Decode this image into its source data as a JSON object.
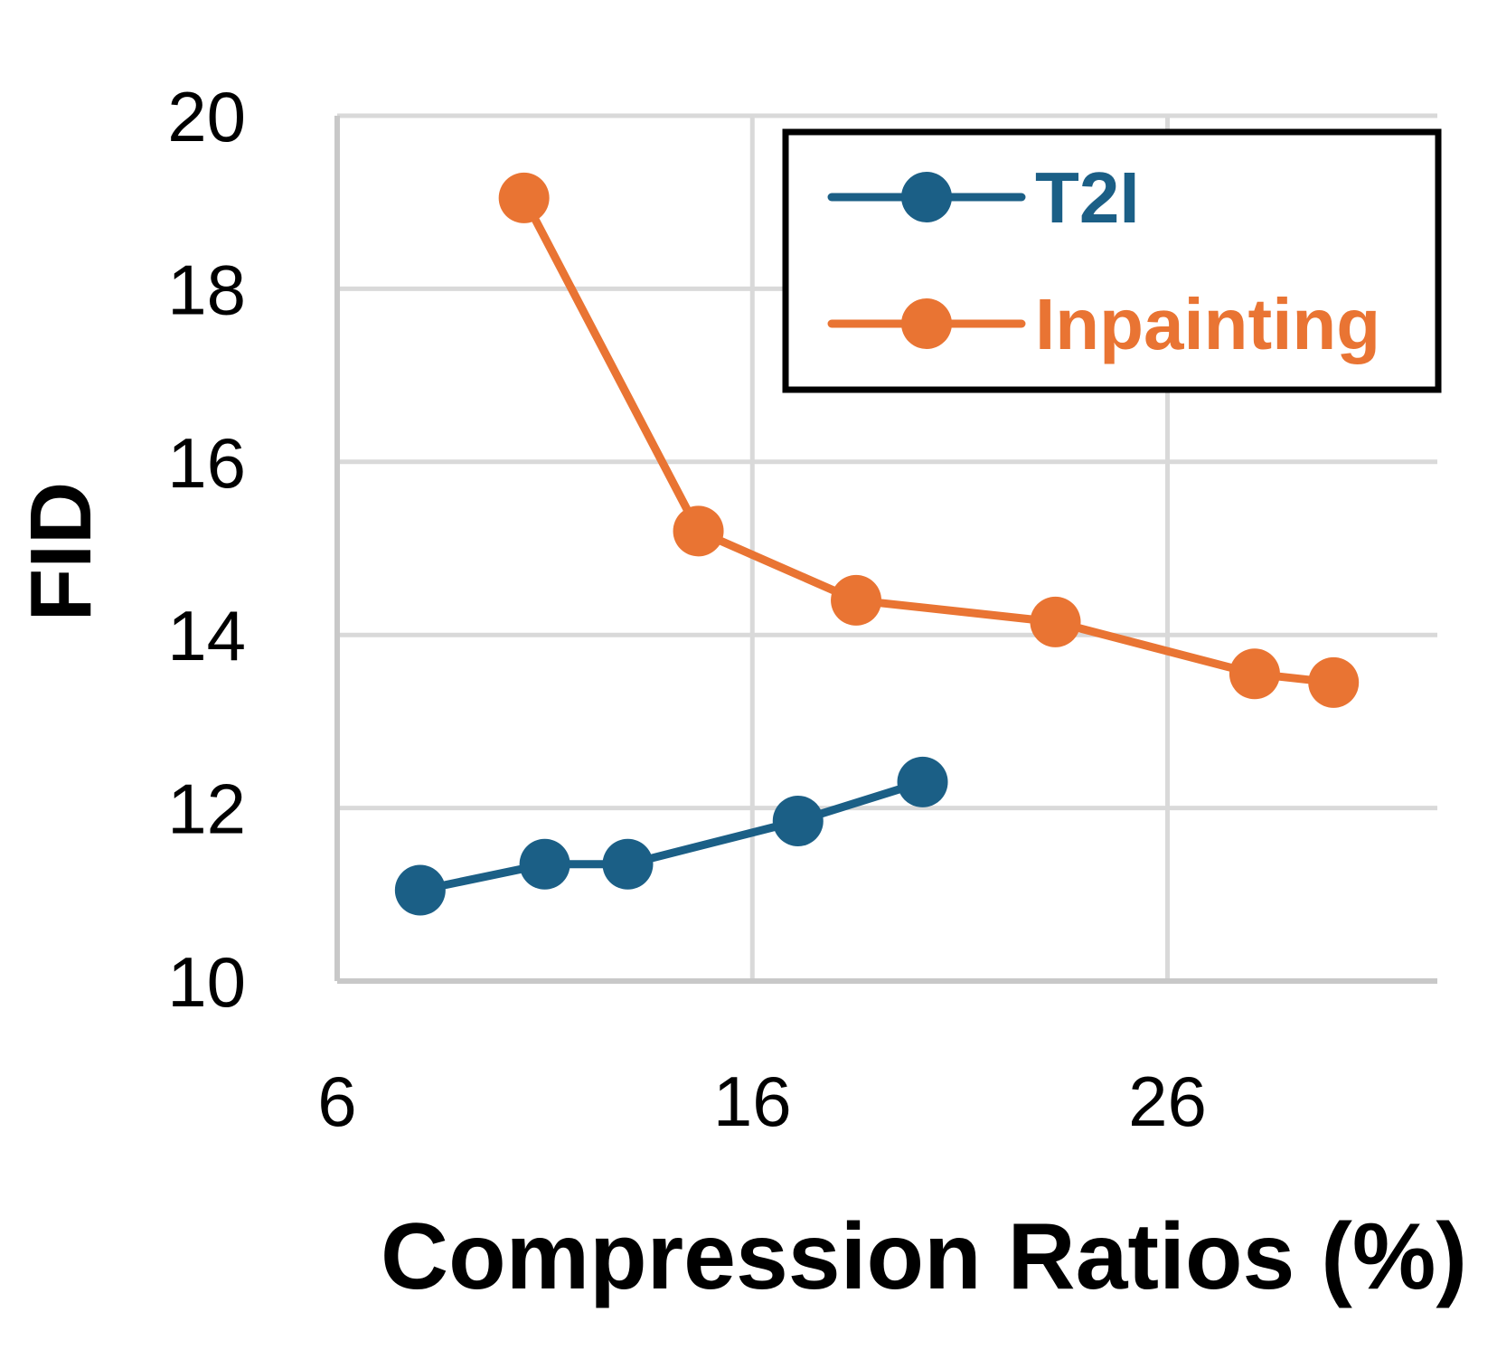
{
  "chart_data": {
    "type": "line",
    "title": "",
    "xlabel": "Compression Ratios (%)",
    "ylabel": "FID",
    "xlim": [
      6,
      32.5
    ],
    "ylim": [
      10,
      20
    ],
    "xticks": [
      6,
      16,
      26
    ],
    "yticks": [
      10,
      12,
      14,
      16,
      18,
      20
    ],
    "xtick_labels": [
      "6",
      "16",
      "26"
    ],
    "ytick_labels": [
      "10",
      "12",
      "14",
      "16",
      "18",
      "20"
    ],
    "grid": true,
    "legend_position": "top-right",
    "series": [
      {
        "name": "T2I",
        "color": "#1b5f86",
        "x": [
          8.0,
          11.0,
          13.0,
          17.1,
          20.1
        ],
        "y": [
          11.05,
          11.35,
          11.35,
          11.85,
          12.3
        ]
      },
      {
        "name": "Inpainting",
        "color": "#e97433",
        "x": [
          10.5,
          14.7,
          18.5,
          23.3,
          28.1,
          30.0
        ],
        "y": [
          19.05,
          15.2,
          14.4,
          14.15,
          13.55,
          13.45
        ]
      }
    ]
  }
}
